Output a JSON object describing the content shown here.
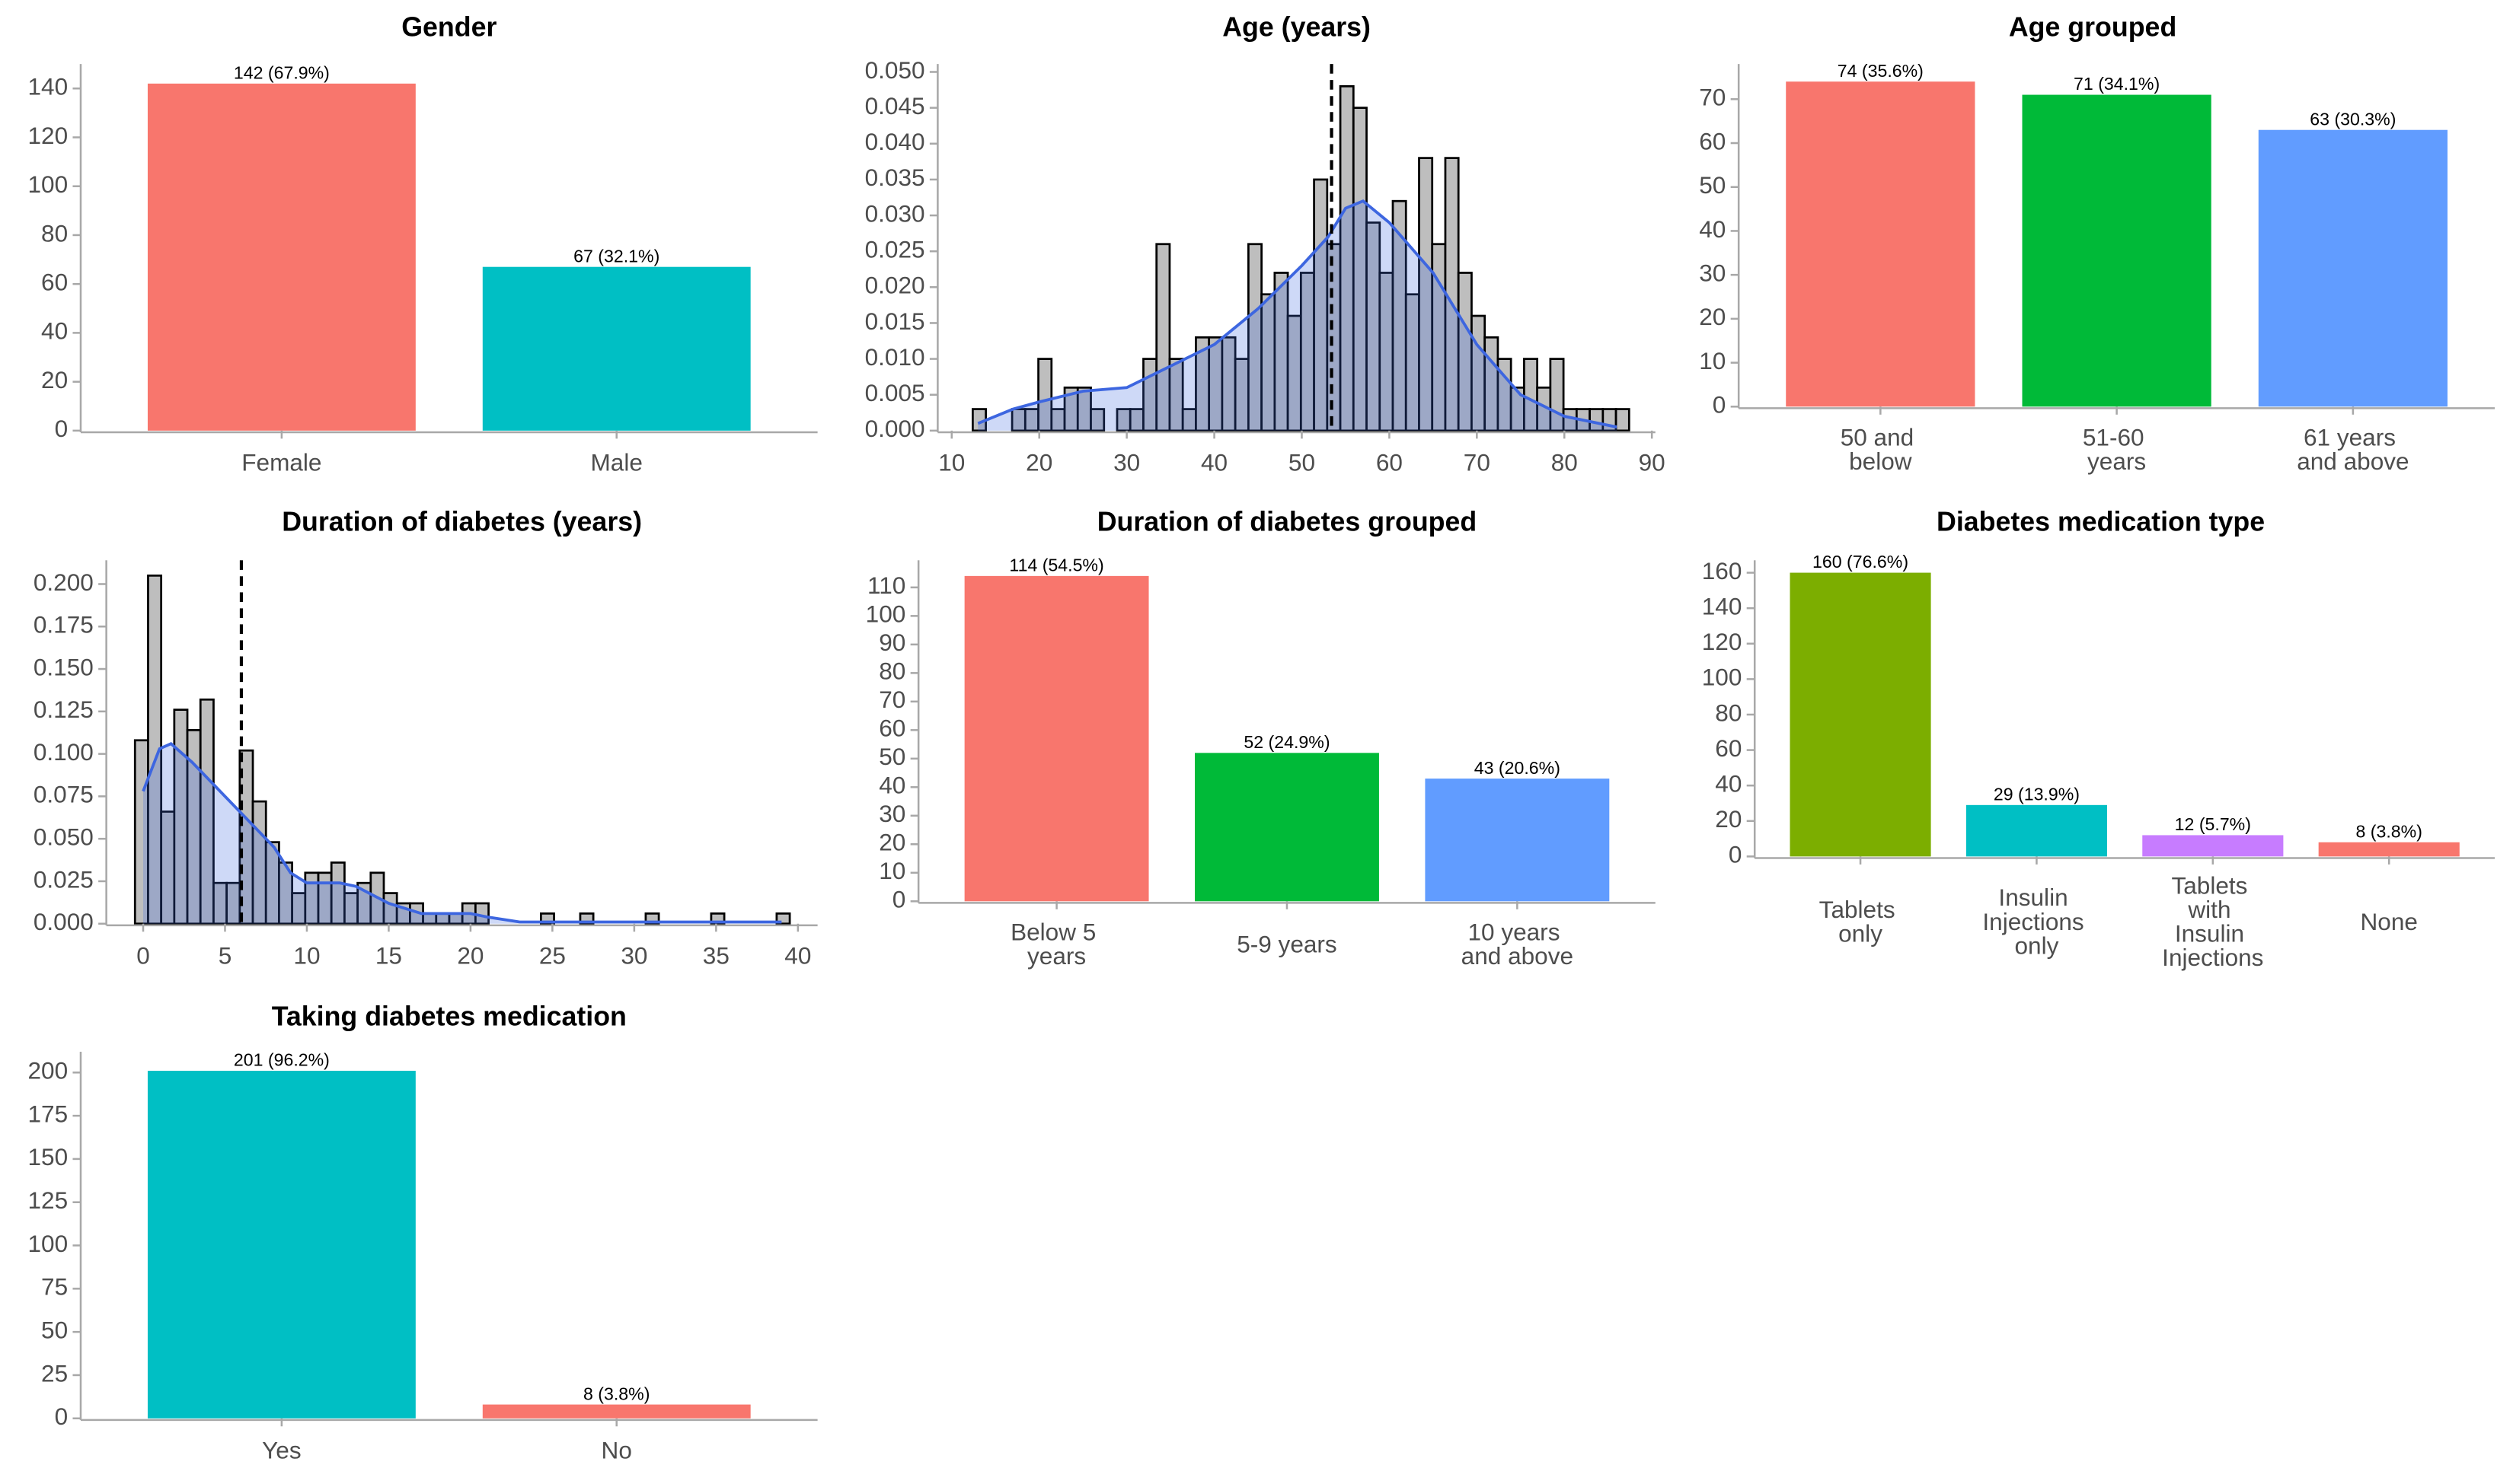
{
  "chart_data": [
    {
      "type": "bar",
      "title": "Gender",
      "categories": [
        "Female",
        "Male"
      ],
      "values": [
        142,
        67
      ],
      "value_labels": [
        "142 (67.9%)",
        "67 (32.1%)"
      ],
      "colors": [
        "#F8766D",
        "#00BFC4"
      ],
      "ylim": [
        0,
        150
      ],
      "yticks": [
        0,
        20,
        40,
        60,
        80,
        100,
        120,
        140
      ]
    },
    {
      "type": "histogram",
      "title": "Age (years)",
      "bins": [
        12.4,
        13.9,
        15.4,
        16.9,
        18.4,
        19.9,
        21.4,
        22.9,
        24.4,
        25.9,
        27.4,
        28.9,
        30.4,
        31.9,
        33.4,
        34.9,
        36.4,
        37.9,
        39.4,
        40.9,
        42.4,
        43.9,
        45.4,
        46.9,
        48.4,
        49.9,
        51.4,
        52.9,
        54.4,
        55.9,
        57.4,
        58.9,
        60.4,
        61.9,
        63.4,
        64.9,
        66.4,
        67.9,
        69.4,
        70.9,
        72.4,
        73.9,
        75.4,
        76.9,
        78.4,
        79.9,
        81.4,
        82.9,
        84.4,
        85.9,
        87.4
      ],
      "values": [
        0.003,
        0,
        0,
        0.003,
        0.003,
        0.01,
        0.003,
        0.006,
        0.006,
        0.003,
        0,
        0.003,
        0.003,
        0.01,
        0.026,
        0.01,
        0.003,
        0.013,
        0.013,
        0.013,
        0.01,
        0.026,
        0.019,
        0.022,
        0.016,
        0.022,
        0.035,
        0.026,
        0.048,
        0.045,
        0.029,
        0.022,
        0.032,
        0.019,
        0.038,
        0.026,
        0.038,
        0.022,
        0.016,
        0.013,
        0.01,
        0.006,
        0.01,
        0.006,
        0.01,
        0.003,
        0.003,
        0.003,
        0.003,
        0.003
      ],
      "color": "#bebebe",
      "edgecolor": "#000000",
      "mean_line": 53.4,
      "density": {
        "color": "#3d66e0",
        "x": [
          13,
          17,
          20,
          25,
          30,
          35,
          40,
          45,
          50,
          53,
          55,
          57,
          60,
          65,
          70,
          75,
          80,
          86
        ],
        "y": [
          0.001,
          0.003,
          0.004,
          0.0055,
          0.006,
          0.009,
          0.012,
          0.017,
          0.023,
          0.027,
          0.031,
          0.032,
          0.029,
          0.022,
          0.012,
          0.005,
          0.002,
          0.0005
        ]
      },
      "xlim": [
        8.4,
        90.4
      ],
      "xticks": [
        10,
        20,
        30,
        40,
        50,
        60,
        70,
        80,
        90
      ],
      "ylim": [
        0,
        0.0511
      ],
      "yticks": [
        {
          "value": 0,
          "label": "0.000"
        },
        {
          "value": 0.005,
          "label": "0.005"
        },
        {
          "value": 0.01,
          "label": "0.010"
        },
        {
          "value": 0.015,
          "label": "0.015"
        },
        {
          "value": 0.02,
          "label": "0.020"
        },
        {
          "value": 0.025,
          "label": "0.025"
        },
        {
          "value": 0.03,
          "label": "0.030"
        },
        {
          "value": 0.035,
          "label": "0.035"
        },
        {
          "value": 0.04,
          "label": "0.040"
        },
        {
          "value": 0.045,
          "label": "0.045"
        },
        {
          "value": 0.05,
          "label": "0.050"
        }
      ]
    },
    {
      "type": "bar",
      "title": "Age grouped",
      "categories": [
        "50 and\nbelow",
        "51-60\nyears",
        "61 years\nand above"
      ],
      "values": [
        74,
        71,
        63
      ],
      "value_labels": [
        "74 (35.6%)",
        "71 (34.1%)",
        "63 (30.3%)"
      ],
      "colors": [
        "#F8766D",
        "#00BA38",
        "#619CFF"
      ],
      "ylim": [
        0,
        78
      ],
      "yticks": [
        0,
        10,
        20,
        30,
        40,
        50,
        60,
        70
      ]
    },
    {
      "type": "histogram",
      "title": "Duration of diabetes (years)",
      "bins": [
        -0.5,
        0.3,
        1.1,
        1.9,
        2.7,
        3.5,
        4.3,
        5.1,
        5.9,
        6.7,
        7.5,
        8.3,
        9.1,
        9.9,
        10.7,
        11.5,
        12.3,
        13.1,
        13.9,
        14.7,
        15.5,
        16.3,
        17.1,
        17.9,
        18.7,
        19.5,
        20.3,
        21.1,
        21.9,
        22.7,
        23.5,
        24.3,
        25.1,
        25.9,
        26.7,
        27.5,
        28.3,
        29.1,
        29.9,
        30.7,
        31.5,
        32.3,
        33.1,
        33.9,
        34.7,
        35.5,
        36.3,
        37.1,
        37.9,
        38.7,
        39.5
      ],
      "values": [
        0.108,
        0.205,
        0.066,
        0.126,
        0.114,
        0.132,
        0.024,
        0.024,
        0.102,
        0.072,
        0.048,
        0.036,
        0.018,
        0.03,
        0.03,
        0.036,
        0.018,
        0.024,
        0.03,
        0.018,
        0.012,
        0.012,
        0.006,
        0.006,
        0.006,
        0.012,
        0.012,
        0,
        0,
        0,
        0,
        0.006,
        0,
        0,
        0.006,
        0,
        0,
        0,
        0,
        0.006,
        0,
        0,
        0,
        0,
        0.006,
        0,
        0,
        0,
        0,
        0.006
      ],
      "color": "#bebebe",
      "edgecolor": "#000000",
      "mean_line": 6.0,
      "density": {
        "color": "#3d66e0",
        "x": [
          0,
          1,
          1.7,
          3,
          5,
          6,
          8,
          9,
          10,
          12,
          13,
          15,
          17,
          20,
          21,
          23,
          30,
          39
        ],
        "y": [
          0.078,
          0.103,
          0.106,
          0.095,
          0.075,
          0.065,
          0.045,
          0.03,
          0.024,
          0.024,
          0.022,
          0.012,
          0.006,
          0.006,
          0.004,
          0.001,
          0.001,
          0.001
        ]
      },
      "xlim": [
        -2.25,
        41.2
      ],
      "xticks": [
        0,
        5,
        10,
        15,
        20,
        25,
        30,
        35,
        40
      ],
      "ylim": [
        0,
        0.214
      ],
      "yticks": [
        {
          "value": 0,
          "label": "0.000"
        },
        {
          "value": 0.025,
          "label": "0.025"
        },
        {
          "value": 0.05,
          "label": "0.050"
        },
        {
          "value": 0.075,
          "label": "0.075"
        },
        {
          "value": 0.1,
          "label": "0.100"
        },
        {
          "value": 0.125,
          "label": "0.125"
        },
        {
          "value": 0.15,
          "label": "0.150"
        },
        {
          "value": 0.175,
          "label": "0.175"
        },
        {
          "value": 0.2,
          "label": "0.200"
        }
      ]
    },
    {
      "type": "bar",
      "title": "Duration of diabetes grouped",
      "categories": [
        "Below 5\nyears",
        "5-9 years",
        "10 years\nand above"
      ],
      "values": [
        114,
        52,
        43
      ],
      "value_labels": [
        "114 (54.5%)",
        "52 (24.9%)",
        "43 (20.6%)"
      ],
      "colors": [
        "#F8766D",
        "#00BA38",
        "#619CFF"
      ],
      "ylim": [
        0,
        119.5
      ],
      "yticks": [
        0,
        10,
        20,
        30,
        40,
        50,
        60,
        70,
        80,
        90,
        100,
        110
      ]
    },
    {
      "type": "bar",
      "title": "Diabetes medication type",
      "categories": [
        "Tablets\nonly",
        "Insulin\nInjections\nonly",
        "Tablets\nwith\nInsulin\nInjections",
        "None"
      ],
      "values": [
        160,
        29,
        12,
        8
      ],
      "value_labels": [
        "160 (76.6%)",
        "29 (13.9%)",
        "12 (5.7%)",
        "8 (3.8%)"
      ],
      "colors": [
        "#7CAE00",
        "#00BFC4",
        "#C77CFF",
        "#F8766D"
      ],
      "ylim": [
        0,
        167
      ],
      "yticks": [
        0,
        20,
        40,
        60,
        80,
        100,
        120,
        140,
        160
      ]
    },
    {
      "type": "bar",
      "title": "Taking diabetes medication",
      "categories": [
        "Yes",
        "No"
      ],
      "values": [
        201,
        8
      ],
      "value_labels": [
        "201 (96.2%)",
        "8 (3.8%)"
      ],
      "colors": [
        "#00BFC4",
        "#F8766D"
      ],
      "ylim": [
        0,
        212
      ],
      "yticks": [
        0,
        25,
        50,
        75,
        100,
        125,
        150,
        175,
        200
      ]
    }
  ]
}
